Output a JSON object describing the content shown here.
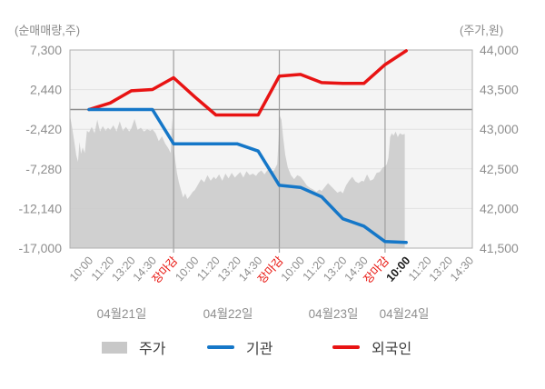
{
  "chart_data": {
    "type": "combo-area-line",
    "title": "",
    "left_axis": {
      "label": "(순매매량,주)",
      "ticks": [
        7300,
        2440,
        -2420,
        -7280,
        -12140,
        -17000
      ],
      "range": [
        -17000,
        7300
      ],
      "zero_line": 0
    },
    "right_axis": {
      "label": "(주가,원)",
      "ticks": [
        44000,
        43500,
        43000,
        42500,
        42000,
        41500
      ],
      "range": [
        41500,
        44000
      ]
    },
    "x_axis": {
      "days": [
        {
          "date": "04월21일",
          "times": [
            "10:00",
            "11:20",
            "13:20",
            "14:30",
            "장마감"
          ]
        },
        {
          "date": "04월22일",
          "times": [
            "10:00",
            "11:20",
            "13:20",
            "14:30",
            "장마감"
          ]
        },
        {
          "date": "04월23일",
          "times": [
            "10:00",
            "11:20",
            "13:20",
            "14:30",
            "장마감"
          ]
        },
        {
          "date": "04월24일",
          "times": [
            "10:00",
            "11:20",
            "13:20",
            "14:30"
          ]
        }
      ],
      "market_close_label": "장마감",
      "current_time_tick_index": 15
    },
    "series": [
      {
        "name": "주가",
        "type": "area",
        "axis": "right",
        "color": "#cbcbcb",
        "points": [
          [
            -0.9,
            43180
          ],
          [
            -0.8,
            43020
          ],
          [
            -0.7,
            42850
          ],
          [
            -0.6,
            42670
          ],
          [
            -0.52,
            42590
          ],
          [
            -0.45,
            42840
          ],
          [
            -0.38,
            42690
          ],
          [
            -0.3,
            42770
          ],
          [
            -0.2,
            42700
          ],
          [
            -0.1,
            42980
          ],
          [
            0.0,
            42960
          ],
          [
            0.13,
            43030
          ],
          [
            0.26,
            42950
          ],
          [
            0.39,
            43120
          ],
          [
            0.52,
            42970
          ],
          [
            0.65,
            43040
          ],
          [
            0.78,
            42980
          ],
          [
            0.9,
            43020
          ],
          [
            1.0,
            42990
          ],
          [
            1.15,
            43050
          ],
          [
            1.3,
            42970
          ],
          [
            1.45,
            43100
          ],
          [
            1.6,
            42980
          ],
          [
            1.75,
            43030
          ],
          [
            1.9,
            42970
          ],
          [
            2.0,
            43010
          ],
          [
            2.15,
            43130
          ],
          [
            2.3,
            42990
          ],
          [
            2.45,
            43020
          ],
          [
            2.6,
            42970
          ],
          [
            2.75,
            43000
          ],
          [
            2.9,
            42980
          ],
          [
            3.0,
            43000
          ],
          [
            3.15,
            42950
          ],
          [
            3.3,
            42850
          ],
          [
            3.45,
            42910
          ],
          [
            3.6,
            42820
          ],
          [
            3.75,
            42760
          ],
          [
            3.86,
            42700
          ],
          [
            3.93,
            43140
          ],
          [
            4.0,
            42780
          ],
          [
            4.08,
            42600
          ],
          [
            4.16,
            42450
          ],
          [
            4.25,
            42330
          ],
          [
            4.35,
            42230
          ],
          [
            4.45,
            42140
          ],
          [
            4.55,
            42190
          ],
          [
            4.65,
            42120
          ],
          [
            4.78,
            42160
          ],
          [
            4.9,
            42210
          ],
          [
            5.0,
            42230
          ],
          [
            5.15,
            42300
          ],
          [
            5.3,
            42370
          ],
          [
            5.45,
            42330
          ],
          [
            5.6,
            42420
          ],
          [
            5.75,
            42350
          ],
          [
            5.9,
            42400
          ],
          [
            6.0,
            42370
          ],
          [
            6.15,
            42430
          ],
          [
            6.3,
            42350
          ],
          [
            6.45,
            42440
          ],
          [
            6.6,
            42380
          ],
          [
            6.75,
            42450
          ],
          [
            6.9,
            42390
          ],
          [
            7.0,
            42420
          ],
          [
            7.15,
            42460
          ],
          [
            7.3,
            42390
          ],
          [
            7.45,
            42470
          ],
          [
            7.6,
            42420
          ],
          [
            7.75,
            42440
          ],
          [
            7.9,
            42410
          ],
          [
            8.0,
            42450
          ],
          [
            8.15,
            42480
          ],
          [
            8.3,
            42430
          ],
          [
            8.45,
            42490
          ],
          [
            8.6,
            42460
          ],
          [
            8.75,
            42480
          ],
          [
            8.9,
            42560
          ],
          [
            8.97,
            42900
          ],
          [
            9.02,
            43170
          ],
          [
            9.1,
            43120
          ],
          [
            9.18,
            42900
          ],
          [
            9.28,
            42680
          ],
          [
            9.4,
            42520
          ],
          [
            9.55,
            42420
          ],
          [
            9.7,
            42370
          ],
          [
            9.85,
            42420
          ],
          [
            10.0,
            42400
          ],
          [
            10.15,
            42350
          ],
          [
            10.3,
            42290
          ],
          [
            10.45,
            42260
          ],
          [
            10.6,
            42240
          ],
          [
            10.75,
            42210
          ],
          [
            10.9,
            42240
          ],
          [
            11.0,
            42220
          ],
          [
            11.15,
            42270
          ],
          [
            11.3,
            42320
          ],
          [
            11.45,
            42280
          ],
          [
            11.6,
            42240
          ],
          [
            11.75,
            42200
          ],
          [
            11.9,
            42220
          ],
          [
            12.0,
            42190
          ],
          [
            12.15,
            42290
          ],
          [
            12.3,
            42350
          ],
          [
            12.45,
            42400
          ],
          [
            12.6,
            42340
          ],
          [
            12.75,
            42320
          ],
          [
            12.9,
            42350
          ],
          [
            13.0,
            42340
          ],
          [
            13.15,
            42430
          ],
          [
            13.3,
            42350
          ],
          [
            13.45,
            42370
          ],
          [
            13.6,
            42450
          ],
          [
            13.75,
            42460
          ],
          [
            13.9,
            42520
          ],
          [
            14.0,
            42530
          ],
          [
            14.08,
            42560
          ],
          [
            14.16,
            42640
          ],
          [
            14.24,
            42900
          ],
          [
            14.32,
            42950
          ],
          [
            14.4,
            42920
          ],
          [
            14.5,
            42970
          ],
          [
            14.6,
            42900
          ],
          [
            14.7,
            42950
          ],
          [
            14.82,
            42930
          ],
          [
            14.93,
            42940
          ]
        ]
      },
      {
        "name": "기관",
        "type": "line",
        "axis": "left",
        "color": "#1577c8",
        "values": [
          0,
          0,
          0,
          0,
          -4200,
          -4200,
          -4200,
          -4200,
          -5100,
          -9300,
          -9550,
          -10700,
          -13400,
          -14300,
          -16200,
          -16300
        ]
      },
      {
        "name": "외국인",
        "type": "line",
        "axis": "left",
        "color": "#e81313",
        "values": [
          0,
          800,
          2300,
          2450,
          3900,
          1550,
          -670,
          -670,
          -670,
          4100,
          4300,
          3300,
          3200,
          3200,
          5500,
          7200
        ]
      }
    ],
    "style_colors": {
      "plot_background": "#f4f4f4",
      "grid_line": "#e2e2e2",
      "plot_border": "#b0b0b0",
      "zero_line": "#8c8c8c",
      "day_divider_line": "#9e9e9e",
      "tick_text": "#8e8e8e",
      "close_tick_text": "#e8120c",
      "current_tick_text": "#1a1a1a"
    }
  },
  "legend": {
    "items": [
      {
        "label": "주가",
        "swatch": "area",
        "color": "#c8c8c8"
      },
      {
        "label": "기관",
        "swatch": "line",
        "color": "#1577c8"
      },
      {
        "label": "외국인",
        "swatch": "line",
        "color": "#e81313"
      }
    ]
  }
}
